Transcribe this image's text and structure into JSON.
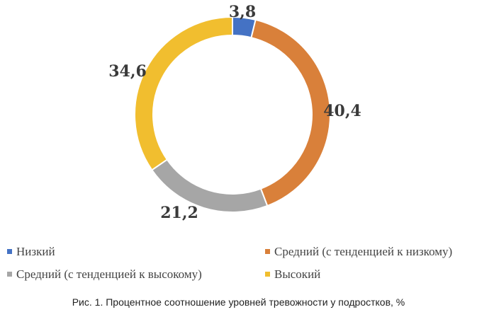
{
  "chart_data": {
    "type": "pie",
    "variant": "donut",
    "categories": [
      "Низкий",
      "Средний (с тенденцией к низкому)",
      "Средний (с тенденцией к высокому)",
      "Высокий"
    ],
    "values": [
      3.8,
      40.4,
      21.2,
      34.6
    ],
    "value_labels": [
      "3,8",
      "40,4",
      "21,2",
      "34,6"
    ],
    "colors": [
      "#4472C4",
      "#D9803A",
      "#A6A6A6",
      "#F1BE2F"
    ],
    "legend_position": "bottom",
    "start_angle": "12 o'clock, clockwise"
  },
  "legend": [
    {
      "label": "Низкий",
      "color": "#4472C4"
    },
    {
      "label": "Средний (с тенденцией к низкому)",
      "color": "#D9803A"
    },
    {
      "label": "Средний (с тенденцией к высокому)",
      "color": "#A6A6A6"
    },
    {
      "label": "Высокий",
      "color": "#F1BE2F"
    }
  ],
  "caption": "Рис. 1. Процентное соотношение уровней тревожности у подростков, %"
}
